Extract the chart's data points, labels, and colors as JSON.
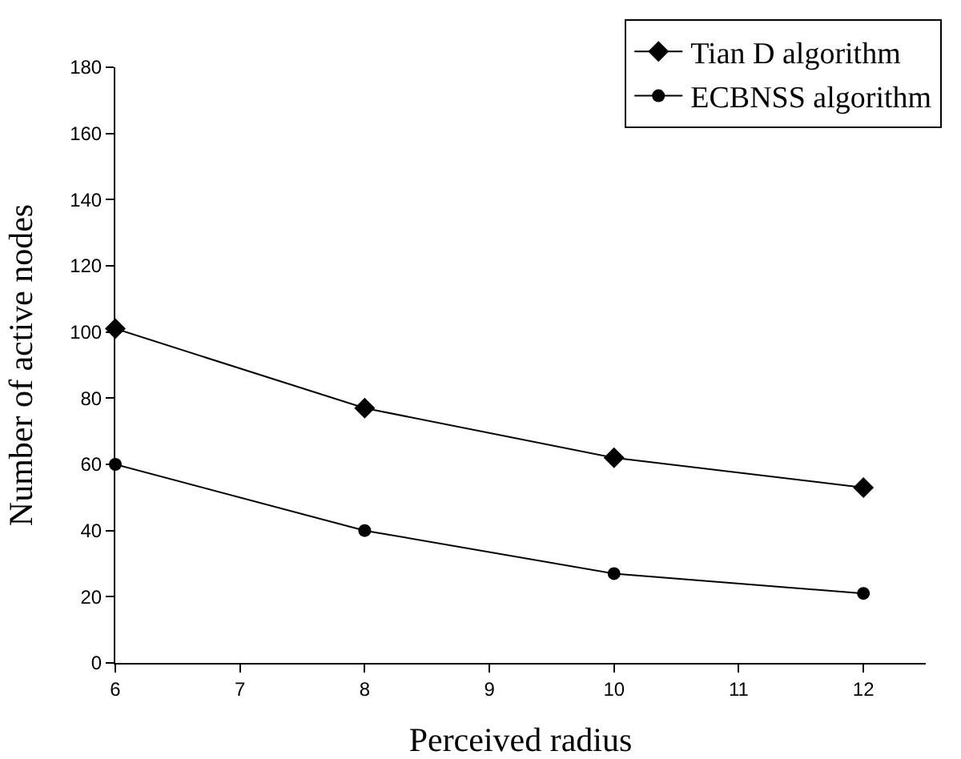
{
  "chart_data": {
    "type": "line",
    "xlabel": "Perceived radius",
    "ylabel": "Number of active nodes",
    "x": [
      6,
      8,
      10,
      12
    ],
    "series": [
      {
        "name": "Tian D algorithm",
        "color": "#000000",
        "marker": "diamond",
        "values": [
          101,
          77,
          62,
          53
        ]
      },
      {
        "name": "ECBNSS algorithm",
        "color": "#000000",
        "marker": "circle",
        "values": [
          60,
          40,
          27,
          21
        ]
      }
    ],
    "xlim": [
      6,
      12.5
    ],
    "xticks": [
      6,
      7,
      8,
      9,
      10,
      11,
      12
    ],
    "ylim": [
      0,
      180
    ],
    "yticks": [
      0,
      20,
      40,
      60,
      80,
      100,
      120,
      140,
      160,
      180
    ],
    "grid": false,
    "legend": "top right",
    "line_style": "solid"
  }
}
